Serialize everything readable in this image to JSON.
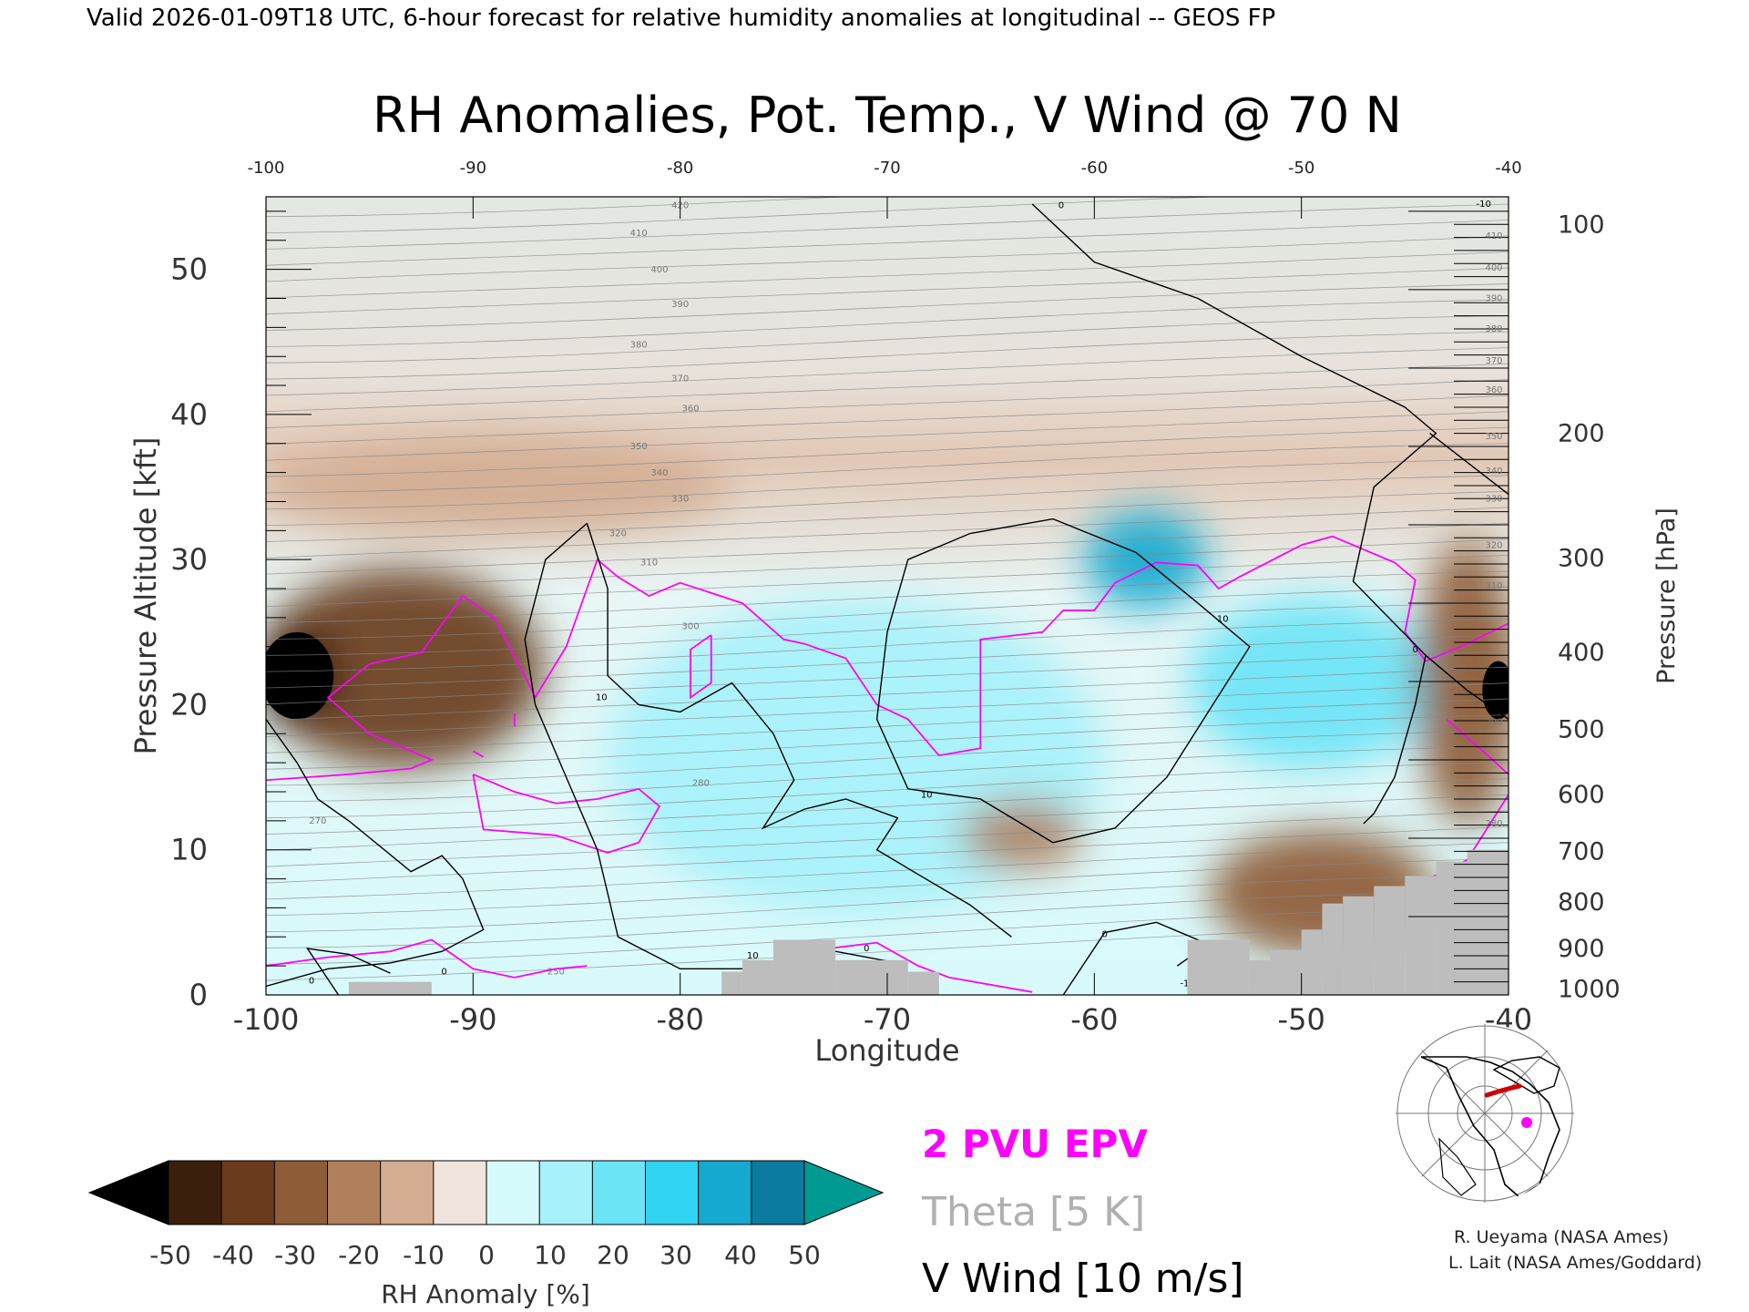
{
  "header": {
    "valid_line": "Valid 2026-01-09T18 UTC, 6-hour forecast for relative humidity anomalies at longitudinal -- GEOS FP"
  },
  "chart_data": {
    "type": "heatmap",
    "title": "RH Anomalies, Pot. Temp., V Wind @ 70 N",
    "xlabel": "Longitude",
    "ylabel_left": "Pressure Altitude [kft]",
    "ylabel_right": "Pressure [hPa]",
    "xlim": [
      -100,
      -40
    ],
    "ylim_kft": [
      0,
      55
    ],
    "x_ticks": [
      "-100",
      "-90",
      "-80",
      "-70",
      "-60",
      "-50",
      "-40"
    ],
    "x_ticks_top": [
      "-100",
      "-90",
      "-80",
      "-70",
      "-60",
      "-50",
      "-40"
    ],
    "y_ticks_left": [
      0,
      10,
      20,
      30,
      40,
      50
    ],
    "y_ticks_left_labels": [
      "0",
      "10",
      "20",
      "30",
      "40",
      "50"
    ],
    "y_ticks_right": [
      {
        "label": "100",
        "kft": 53.1
      },
      {
        "label": "200",
        "kft": 38.7
      },
      {
        "label": "300",
        "kft": 30.1
      },
      {
        "label": "400",
        "kft": 23.6
      },
      {
        "label": "500",
        "kft": 18.3
      },
      {
        "label": "600",
        "kft": 13.8
      },
      {
        "label": "700",
        "kft": 9.9
      },
      {
        "label": "800",
        "kft": 6.4
      },
      {
        "label": "900",
        "kft": 3.2
      },
      {
        "label": "1000",
        "kft": 0.4
      }
    ],
    "theta_contour_labels": [
      "420",
      "410",
      "400",
      "390",
      "380",
      "370",
      "360",
      "350",
      "340",
      "330",
      "320",
      "310",
      "300",
      "280",
      "270",
      "250"
    ],
    "theta_labels_right": [
      "410",
      "400",
      "390",
      "380",
      "370",
      "360",
      "350",
      "340",
      "330",
      "320",
      "310",
      "290",
      "280"
    ],
    "wind_contour_labels": [
      "-10",
      "0",
      "10"
    ],
    "regions": [
      {
        "type": "dry",
        "x": [
          -100,
          -87
        ],
        "kft": [
          16,
          29
        ],
        "rh": -40
      },
      {
        "type": "very_dry",
        "x": [
          -100,
          -97
        ],
        "kft": [
          19,
          25
        ],
        "rh": -55
      },
      {
        "type": "very_dry",
        "x": [
          -41,
          -40
        ],
        "kft": [
          19,
          23
        ],
        "rh": -55
      },
      {
        "type": "dry",
        "x": [
          -100,
          -78
        ],
        "kft": [
          32,
          38
        ],
        "rh": -15
      },
      {
        "type": "moist",
        "x": [
          -83,
          -60
        ],
        "kft": [
          6,
          27
        ],
        "rh": 20
      },
      {
        "type": "very_moist",
        "x": [
          -60,
          -55
        ],
        "kft": [
          27,
          33
        ],
        "rh": 45
      },
      {
        "type": "moist",
        "x": [
          -55,
          -44
        ],
        "kft": [
          16,
          27
        ],
        "rh": 30
      },
      {
        "type": "dry",
        "x": [
          -54,
          -44
        ],
        "kft": [
          3,
          11
        ],
        "rh": -35
      },
      {
        "type": "dry",
        "x": [
          -66,
          -61
        ],
        "kft": [
          9,
          13
        ],
        "rh": -20
      },
      {
        "type": "dry",
        "x": [
          -44,
          -40
        ],
        "kft": [
          12,
          31
        ],
        "rh": -30
      }
    ],
    "colorbar": {
      "label": "RH Anomaly [%]",
      "ticks": [
        "-50",
        "-40",
        "-30",
        "-20",
        "-10",
        "0",
        "10",
        "20",
        "30",
        "40",
        "50"
      ],
      "colors": [
        "#000000",
        "#3a1f0c",
        "#6a3c1c",
        "#8e5c37",
        "#b07f5b",
        "#d3ac92",
        "#f0e4dc",
        "#d6fbfc",
        "#a7f1fa",
        "#6be4f6",
        "#30d3f2",
        "#15a9cf",
        "#0b7b9f",
        "#009a92"
      ]
    },
    "legend": [
      {
        "label": "2 PVU EPV",
        "color": "#ff00ff"
      },
      {
        "label": "Theta [5 K]",
        "color": "#b0b0b0"
      },
      {
        "label": "V Wind [10 m/s]",
        "color": "#000000"
      }
    ],
    "terrain_color": "#bdbdbd",
    "epv_color": "#ff00ff",
    "theta_color": "#8c8c8c",
    "wind_color": "#000000"
  },
  "credits": {
    "line1": "R. Ueyama (NASA Ames)",
    "line2": "L. Lait (NASA Ames/Goddard)"
  },
  "inset_map": {
    "icon": "north-polar-map-icon",
    "marker_color": "#ff00ff",
    "track_color": "#cc0000"
  }
}
